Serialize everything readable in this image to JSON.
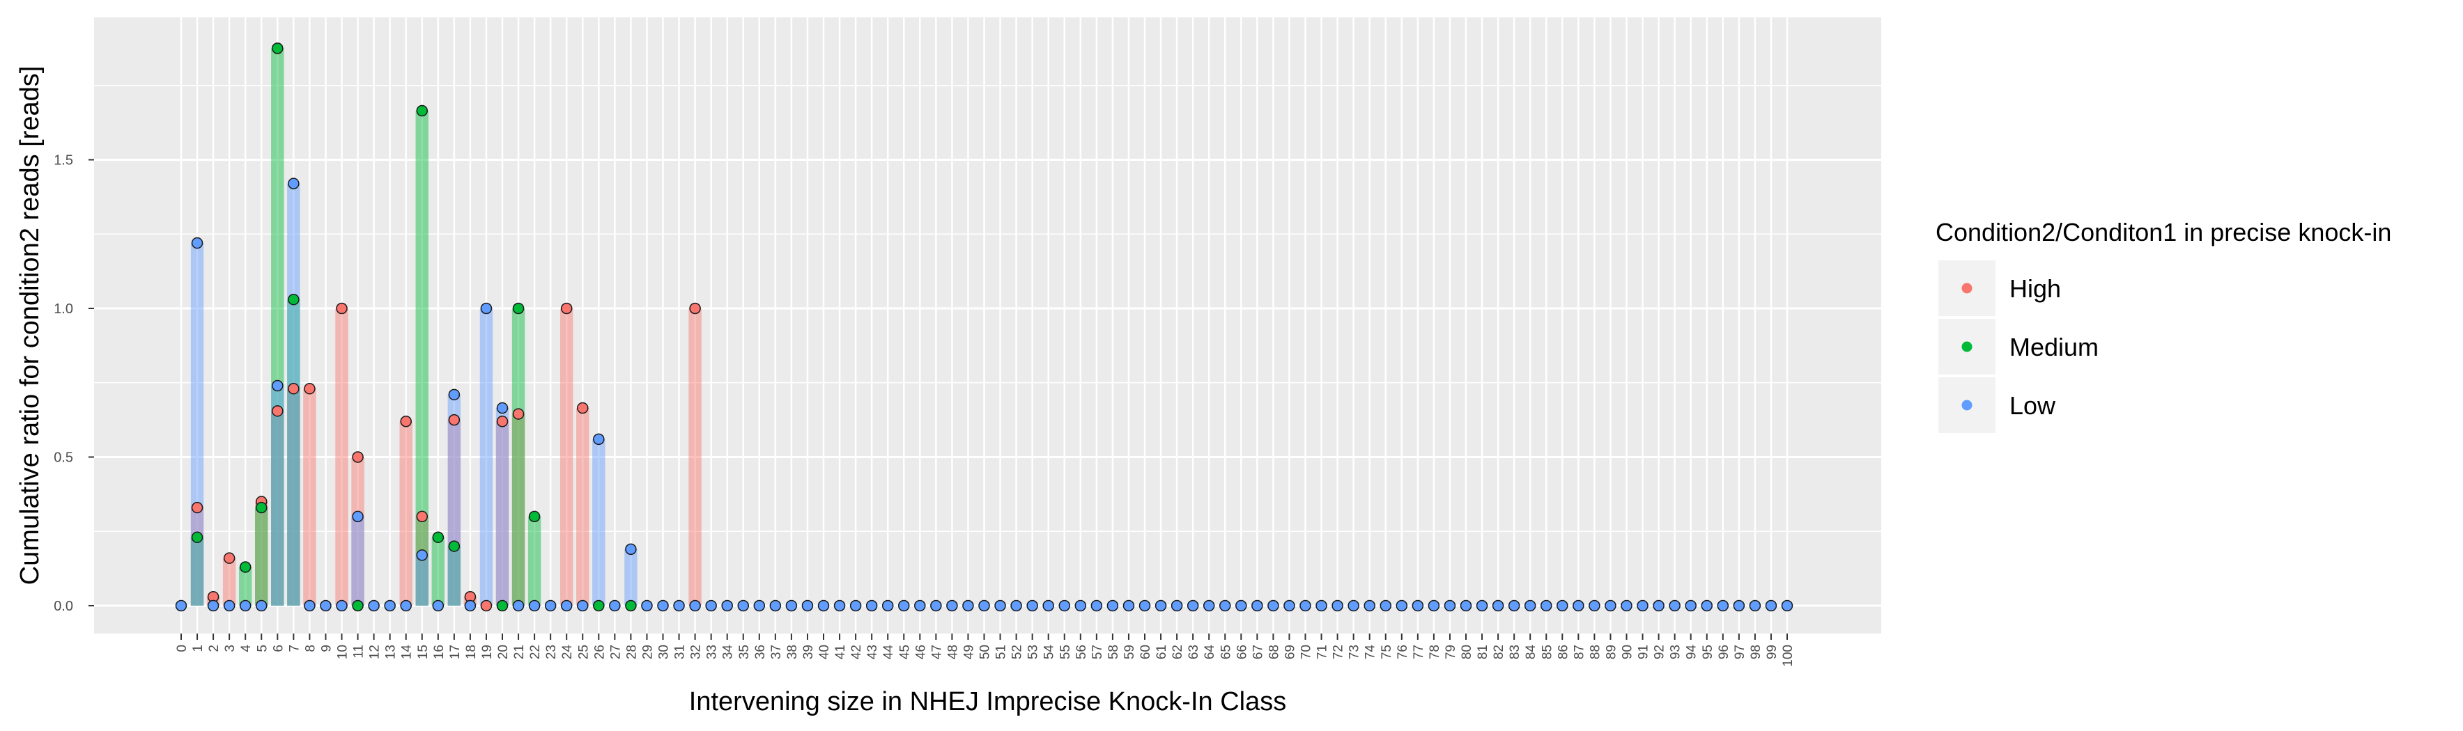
{
  "chart_data": {
    "type": "bar",
    "xlabel": "Intervening size in NHEJ Imprecise Knock-In Class",
    "ylabel": "Cumulative ratio for condition2 reads [reads]",
    "x_range": [
      0,
      100
    ],
    "ylim": [
      -0.09,
      1.91
    ],
    "yticks": [
      0.0,
      0.5,
      1.0,
      1.5
    ],
    "ytick_labels": [
      "0.0",
      "0.5",
      "1.0",
      "1.5"
    ],
    "grid": true,
    "legend": {
      "title": "Condition2/Conditon1 in precise knock-in",
      "position": "right",
      "entries": [
        "High",
        "Medium",
        "Low"
      ]
    },
    "colors": {
      "High": "#F8766D",
      "Medium": "#00BA38",
      "Low": "#619CFF"
    },
    "series": [
      {
        "name": "High",
        "points": [
          [
            1,
            0.33
          ],
          [
            2,
            0.03
          ],
          [
            3,
            0.16
          ],
          [
            5,
            0.35
          ],
          [
            6,
            0.655
          ],
          [
            7,
            0.73
          ],
          [
            8,
            0.73
          ],
          [
            10,
            1.0
          ],
          [
            11,
            0.5
          ],
          [
            14,
            0.62
          ],
          [
            15,
            0.3
          ],
          [
            17,
            0.625
          ],
          [
            18,
            0.03
          ],
          [
            19,
            0.0
          ],
          [
            20,
            0.62
          ],
          [
            21,
            0.645
          ],
          [
            24,
            1.0
          ],
          [
            25,
            0.665
          ],
          [
            32,
            1.0
          ]
        ]
      },
      {
        "name": "Medium",
        "points": [
          [
            1,
            0.23
          ],
          [
            4,
            0.13
          ],
          [
            5,
            0.33
          ],
          [
            6,
            1.875
          ],
          [
            7,
            1.03
          ],
          [
            11,
            0.0
          ],
          [
            15,
            1.665
          ],
          [
            16,
            0.23
          ],
          [
            17,
            0.2
          ],
          [
            20,
            0.0
          ],
          [
            21,
            1.0
          ],
          [
            22,
            0.3
          ],
          [
            26,
            0.0
          ],
          [
            28,
            0.0
          ]
        ]
      },
      {
        "name": "Low",
        "points": [
          [
            0,
            0.0
          ],
          [
            1,
            1.22
          ],
          [
            2,
            0.0
          ],
          [
            3,
            0.0
          ],
          [
            4,
            0.0
          ],
          [
            5,
            0.0
          ],
          [
            6,
            0.74
          ],
          [
            7,
            1.42
          ],
          [
            8,
            0.0
          ],
          [
            9,
            0.0
          ],
          [
            10,
            0.0
          ],
          [
            11,
            0.3
          ],
          [
            12,
            0.0
          ],
          [
            13,
            0.0
          ],
          [
            14,
            0.0
          ],
          [
            15,
            0.17
          ],
          [
            16,
            0.0
          ],
          [
            17,
            0.71
          ],
          [
            18,
            0.0
          ],
          [
            19,
            1.0
          ],
          [
            20,
            0.665
          ],
          [
            21,
            0.0
          ],
          [
            22,
            0.0
          ],
          [
            23,
            0.0
          ],
          [
            24,
            0.0
          ],
          [
            25,
            0.0
          ],
          [
            26,
            0.56
          ],
          [
            27,
            0.0
          ],
          [
            28,
            0.19
          ],
          [
            29,
            0.0
          ],
          [
            30,
            0.0
          ],
          [
            31,
            0.0
          ],
          [
            32,
            0.0
          ],
          [
            33,
            0.0
          ],
          [
            34,
            0.0
          ],
          [
            35,
            0.0
          ],
          [
            36,
            0.0
          ],
          [
            37,
            0.0
          ],
          [
            38,
            0.0
          ],
          [
            39,
            0.0
          ],
          [
            40,
            0.0
          ],
          [
            41,
            0.0
          ],
          [
            42,
            0.0
          ],
          [
            43,
            0.0
          ],
          [
            44,
            0.0
          ],
          [
            45,
            0.0
          ],
          [
            46,
            0.0
          ],
          [
            47,
            0.0
          ],
          [
            48,
            0.0
          ],
          [
            49,
            0.0
          ],
          [
            50,
            0.0
          ],
          [
            51,
            0.0
          ],
          [
            52,
            0.0
          ],
          [
            53,
            0.0
          ],
          [
            54,
            0.0
          ],
          [
            55,
            0.0
          ],
          [
            56,
            0.0
          ],
          [
            57,
            0.0
          ],
          [
            58,
            0.0
          ],
          [
            59,
            0.0
          ],
          [
            60,
            0.0
          ],
          [
            61,
            0.0
          ],
          [
            62,
            0.0
          ],
          [
            63,
            0.0
          ],
          [
            64,
            0.0
          ],
          [
            65,
            0.0
          ],
          [
            66,
            0.0
          ],
          [
            67,
            0.0
          ],
          [
            68,
            0.0
          ],
          [
            69,
            0.0
          ],
          [
            70,
            0.0
          ],
          [
            71,
            0.0
          ],
          [
            72,
            0.0
          ],
          [
            73,
            0.0
          ],
          [
            74,
            0.0
          ],
          [
            75,
            0.0
          ],
          [
            76,
            0.0
          ],
          [
            77,
            0.0
          ],
          [
            78,
            0.0
          ],
          [
            79,
            0.0
          ],
          [
            80,
            0.0
          ],
          [
            81,
            0.0
          ],
          [
            82,
            0.0
          ],
          [
            83,
            0.0
          ],
          [
            84,
            0.0
          ],
          [
            85,
            0.0
          ],
          [
            86,
            0.0
          ],
          [
            87,
            0.0
          ],
          [
            88,
            0.0
          ],
          [
            89,
            0.0
          ],
          [
            90,
            0.0
          ],
          [
            91,
            0.0
          ],
          [
            92,
            0.0
          ],
          [
            93,
            0.0
          ],
          [
            94,
            0.0
          ],
          [
            95,
            0.0
          ],
          [
            96,
            0.0
          ],
          [
            97,
            0.0
          ],
          [
            98,
            0.0
          ],
          [
            99,
            0.0
          ],
          [
            100,
            0.0
          ]
        ]
      }
    ]
  }
}
